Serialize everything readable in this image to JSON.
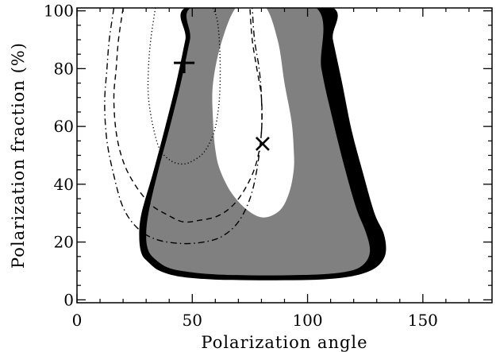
{
  "chart_data": {
    "type": "contour",
    "title": "",
    "xlabel": "Polarization angle",
    "ylabel": "Polarization fraction (%)",
    "xlim": [
      0,
      180
    ],
    "ylim": [
      -1,
      101
    ],
    "xticks": [
      0,
      50,
      100,
      150
    ],
    "xtick_labels": [
      "0",
      "50",
      "100",
      "150"
    ],
    "yticks": [
      0,
      20,
      40,
      60,
      80,
      100
    ],
    "ytick_labels": [
      "0",
      "20",
      "40",
      "60",
      "80",
      "100"
    ],
    "grid": false,
    "legend": "none",
    "colors": {
      "outer_region": "#000000",
      "inner_region": "#808080",
      "hole": "#ffffff",
      "contour_lines": "#000000"
    },
    "regions": [
      {
        "style": "filled-black",
        "outer": [
          [
            50,
            102
          ],
          [
            47,
            90
          ],
          [
            43,
            75
          ],
          [
            38,
            59
          ],
          [
            33,
            44
          ],
          [
            28,
            30
          ],
          [
            27,
            22
          ],
          [
            28,
            16
          ],
          [
            31,
            13
          ],
          [
            36,
            10
          ],
          [
            45,
            8
          ],
          [
            60,
            7
          ],
          [
            75,
            6.8
          ],
          [
            90,
            6.8
          ],
          [
            105,
            7
          ],
          [
            118,
            8
          ],
          [
            127,
            10
          ],
          [
            132,
            13
          ],
          [
            134,
            17
          ],
          [
            133,
            23
          ],
          [
            129,
            30
          ],
          [
            124,
            44
          ],
          [
            119,
            59
          ],
          [
            115,
            75
          ],
          [
            111,
            90
          ],
          [
            108,
            102
          ]
        ]
      },
      {
        "style": "filled-gray",
        "outer": [
          [
            52,
            102
          ],
          [
            49,
            90
          ],
          [
            45,
            75
          ],
          [
            40,
            59
          ],
          [
            35,
            44
          ],
          [
            31,
            30
          ],
          [
            30,
            22
          ],
          [
            31,
            17
          ],
          [
            34,
            14
          ],
          [
            40,
            11
          ],
          [
            50,
            9.5
          ],
          [
            60,
            8.8
          ],
          [
            75,
            8.5
          ],
          [
            90,
            8.5
          ],
          [
            105,
            8.8
          ],
          [
            115,
            9.5
          ],
          [
            122,
            11
          ],
          [
            126,
            14
          ],
          [
            127,
            18
          ],
          [
            125,
            24
          ],
          [
            121,
            32
          ],
          [
            116,
            46
          ],
          [
            111,
            62
          ],
          [
            106,
            80
          ],
          [
            102,
            102
          ]
        ]
      },
      {
        "style": "hole-white",
        "outer": [
          [
            70,
            102
          ],
          [
            63,
            90
          ],
          [
            59,
            75
          ],
          [
            59,
            62
          ],
          [
            60,
            52
          ],
          [
            62,
            45
          ],
          [
            67,
            37
          ],
          [
            74,
            31
          ],
          [
            81,
            28.5
          ],
          [
            88,
            31
          ],
          [
            92,
            37
          ],
          [
            94,
            45
          ],
          [
            94,
            52
          ],
          [
            93,
            62
          ],
          [
            90,
            75
          ],
          [
            87,
            90
          ],
          [
            81,
            102
          ]
        ]
      }
    ],
    "contours": [
      {
        "style": "dotted",
        "points": [
          [
            34,
            101
          ],
          [
            32,
            90
          ],
          [
            31,
            80
          ],
          [
            31,
            70
          ],
          [
            33,
            60
          ],
          [
            36,
            52
          ],
          [
            41,
            48
          ],
          [
            46,
            47
          ],
          [
            50,
            48
          ],
          [
            55,
            51
          ],
          [
            59,
            57
          ],
          [
            61,
            64
          ],
          [
            62,
            73
          ],
          [
            62,
            85
          ],
          [
            61,
            96
          ],
          [
            59,
            101
          ]
        ]
      },
      {
        "style": "dashed",
        "points": [
          [
            20,
            101
          ],
          [
            18,
            90
          ],
          [
            17,
            80
          ],
          [
            16,
            70
          ],
          [
            17,
            58
          ],
          [
            20,
            48
          ],
          [
            25,
            40
          ],
          [
            32,
            33
          ],
          [
            39,
            29.5
          ],
          [
            46,
            27
          ],
          [
            53,
            27.5
          ],
          [
            61,
            29
          ],
          [
            68,
            33
          ],
          [
            74,
            40
          ],
          [
            78,
            48
          ],
          [
            80,
            58
          ],
          [
            80,
            70
          ],
          [
            78,
            80
          ],
          [
            76,
            90
          ],
          [
            75,
            101
          ]
        ]
      },
      {
        "style": "dashdot",
        "points": [
          [
            16,
            101
          ],
          [
            14,
            90
          ],
          [
            13,
            80
          ],
          [
            12,
            68
          ],
          [
            13,
            55
          ],
          [
            16,
            43
          ],
          [
            20,
            32
          ],
          [
            26,
            25
          ],
          [
            34,
            21
          ],
          [
            45,
            19.5
          ],
          [
            55,
            20
          ],
          [
            63,
            22
          ],
          [
            70,
            27
          ],
          [
            75,
            35
          ],
          [
            78,
            45
          ],
          [
            80,
            58
          ],
          [
            80,
            70
          ],
          [
            79,
            80
          ],
          [
            77,
            90
          ],
          [
            76,
            101
          ]
        ]
      }
    ],
    "markers": [
      {
        "symbol": "plus",
        "x": 46.5,
        "y": 82
      },
      {
        "symbol": "x",
        "x": 80.5,
        "y": 54
      }
    ]
  }
}
